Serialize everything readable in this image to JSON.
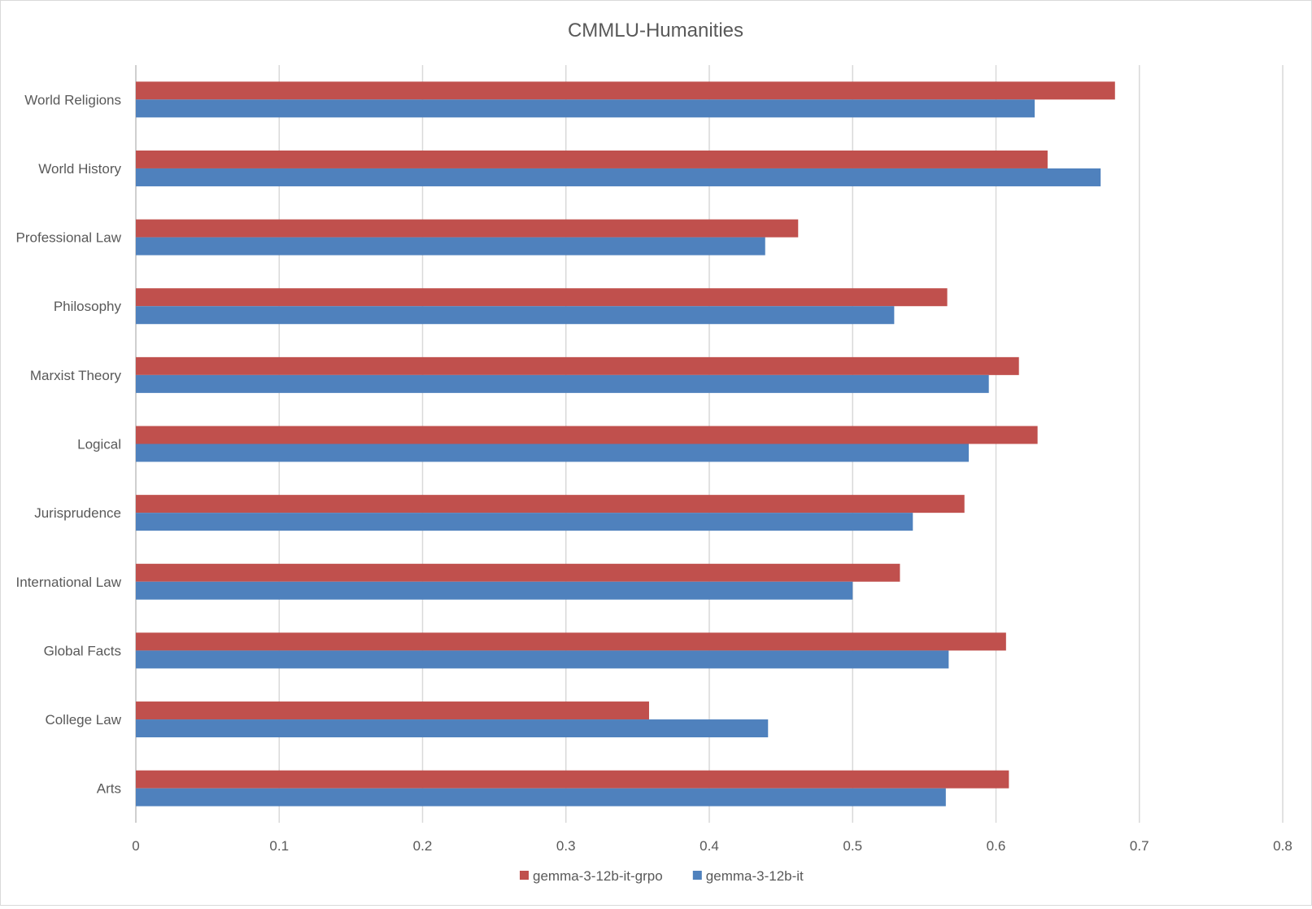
{
  "chart_data": {
    "type": "bar",
    "orientation": "horizontal",
    "title": "CMMLU-Humanities",
    "xlabel": "",
    "ylabel": "",
    "xlim": [
      0,
      0.8
    ],
    "x_ticks": [
      "0",
      "0.1",
      "0.2",
      "0.3",
      "0.4",
      "0.5",
      "0.6",
      "0.7",
      "0.8"
    ],
    "grid": true,
    "legend_position": "bottom",
    "categories": [
      "World Religions",
      "World History",
      "Professional Law",
      "Philosophy",
      "Marxist Theory",
      "Logical",
      "Jurisprudence",
      "International Law",
      "Global Facts",
      "College Law",
      "Arts"
    ],
    "series": [
      {
        "name": "gemma-3-12b-it-grpo",
        "color": "#c0504d",
        "values": [
          0.683,
          0.636,
          0.462,
          0.566,
          0.616,
          0.629,
          0.578,
          0.533,
          0.607,
          0.358,
          0.609
        ]
      },
      {
        "name": "gemma-3-12b-it",
        "color": "#4f81bd",
        "values": [
          0.627,
          0.673,
          0.439,
          0.529,
          0.595,
          0.581,
          0.542,
          0.5,
          0.567,
          0.441,
          0.565
        ]
      }
    ]
  }
}
